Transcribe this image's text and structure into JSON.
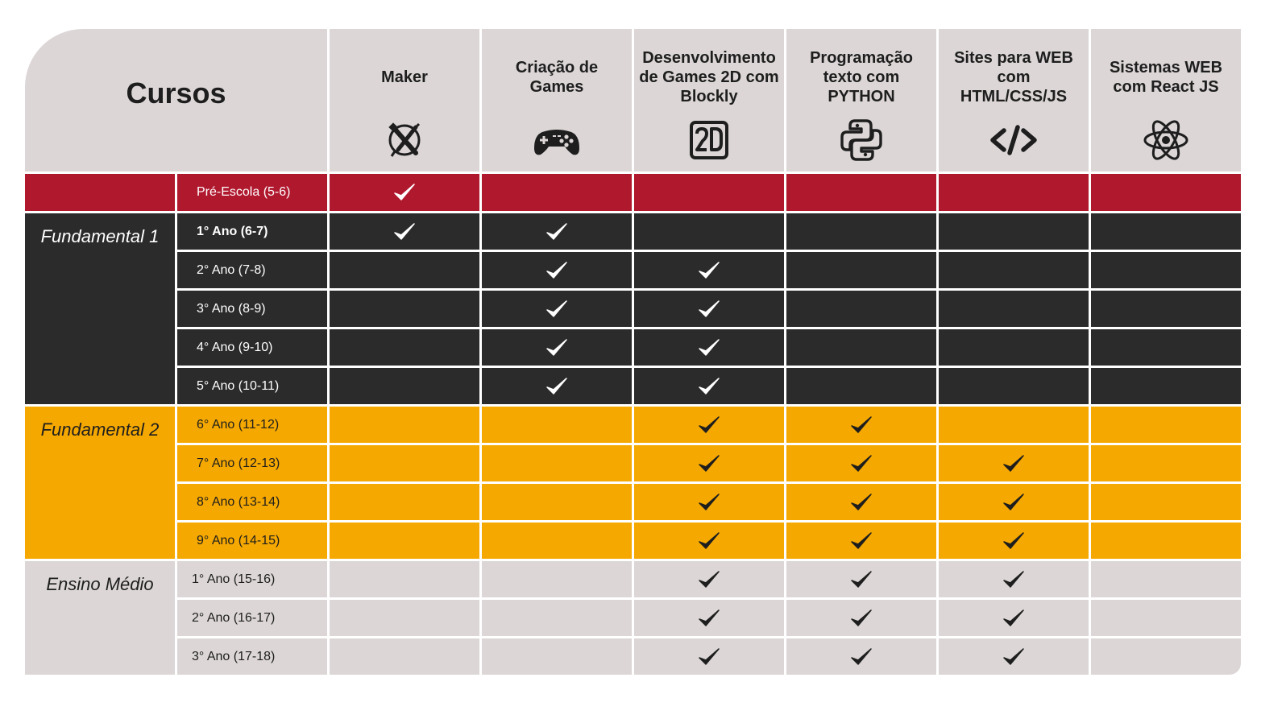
{
  "title": "Cursos",
  "colors": {
    "header_bg": "#dcd6d6",
    "pre": "#b0182e",
    "f1": "#2b2b2b",
    "f2": "#f5a800",
    "em": "#dcd6d6"
  },
  "courses": [
    {
      "label": "Maker",
      "icon": "maker-tools-icon"
    },
    {
      "label": "Criação de Games",
      "icon": "gamepad-icon"
    },
    {
      "label": "Desenvolvimento de Games 2D com Blockly",
      "icon": "2d-icon"
    },
    {
      "label": "Programação texto com PYTHON",
      "icon": "python-icon"
    },
    {
      "label": "Sites para WEB com HTML/CSS/JS",
      "icon": "code-tag-icon"
    },
    {
      "label": "Sistemas WEB com React JS",
      "icon": "react-atom-icon"
    }
  ],
  "levels": [
    {
      "name": "",
      "theme": "pre",
      "rows": [
        {
          "grade": "Pré-Escola (5-6)",
          "checks": [
            true,
            false,
            false,
            false,
            false,
            false
          ]
        }
      ]
    },
    {
      "name": "Fundamental 1",
      "theme": "f1",
      "rows": [
        {
          "grade": "1° Ano (6-7)",
          "bold": true,
          "checks": [
            true,
            true,
            false,
            false,
            false,
            false
          ]
        },
        {
          "grade": "2° Ano (7-8)",
          "checks": [
            false,
            true,
            true,
            false,
            false,
            false
          ]
        },
        {
          "grade": "3° Ano (8-9)",
          "checks": [
            false,
            true,
            true,
            false,
            false,
            false
          ]
        },
        {
          "grade": "4° Ano (9-10)",
          "checks": [
            false,
            true,
            true,
            false,
            false,
            false
          ]
        },
        {
          "grade": "5° Ano (10-11)",
          "checks": [
            false,
            true,
            true,
            false,
            false,
            false
          ]
        }
      ]
    },
    {
      "name": "Fundamental 2",
      "theme": "f2",
      "rows": [
        {
          "grade": "6° Ano (11-12)",
          "checks": [
            false,
            false,
            true,
            true,
            false,
            false
          ]
        },
        {
          "grade": "7° Ano (12-13)",
          "checks": [
            false,
            false,
            true,
            true,
            true,
            false
          ]
        },
        {
          "grade": "8° Ano (13-14)",
          "checks": [
            false,
            false,
            true,
            true,
            true,
            false
          ]
        },
        {
          "grade": "9° Ano (14-15)",
          "checks": [
            false,
            false,
            true,
            true,
            true,
            false
          ]
        }
      ]
    },
    {
      "name": "Ensino Médio",
      "theme": "em",
      "rows": [
        {
          "grade": "1° Ano (15-16)",
          "checks": [
            false,
            false,
            true,
            true,
            true,
            false
          ]
        },
        {
          "grade": "2° Ano (16-17)",
          "checks": [
            false,
            false,
            true,
            true,
            true,
            false
          ]
        },
        {
          "grade": "3° Ano (17-18)",
          "checks": [
            false,
            false,
            true,
            true,
            true,
            false
          ]
        }
      ]
    }
  ]
}
